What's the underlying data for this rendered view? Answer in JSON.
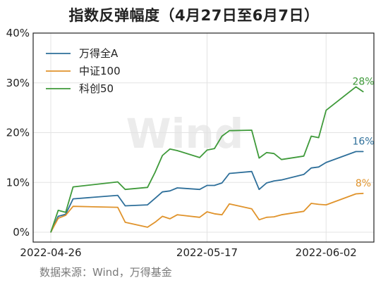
{
  "title": "指数反弹幅度（4月27日至6月7日）",
  "source": "数据来源：Wind，万得基金",
  "watermark": "Wind",
  "chart_data": {
    "type": "line",
    "title": "指数反弹幅度（4月27日至6月7日）",
    "xlabel": "",
    "ylabel": "",
    "xlim": [
      "2022-04-26",
      "2022-06-07"
    ],
    "ylim": [
      0,
      40
    ],
    "yticks": [
      0,
      10,
      20,
      30,
      40
    ],
    "ytick_labels": [
      "0%",
      "10%",
      "20%",
      "30%",
      "40%"
    ],
    "xticks": [
      "2022-04-26",
      "2022-05-17",
      "2022-06-02"
    ],
    "grid": true,
    "legend_position": "top-left",
    "series": [
      {
        "name": "万得全A",
        "color": "#2e6f9a",
        "end_label": "16%",
        "points": [
          [
            "2022-04-26",
            0.0
          ],
          [
            "2022-04-27",
            3.2
          ],
          [
            "2022-04-28",
            3.6
          ],
          [
            "2022-04-29",
            6.7
          ],
          [
            "2022-05-05",
            7.4
          ],
          [
            "2022-05-06",
            5.3
          ],
          [
            "2022-05-09",
            5.5
          ],
          [
            "2022-05-10",
            6.8
          ],
          [
            "2022-05-11",
            8.1
          ],
          [
            "2022-05-12",
            8.3
          ],
          [
            "2022-05-13",
            8.9
          ],
          [
            "2022-05-16",
            8.6
          ],
          [
            "2022-05-17",
            9.4
          ],
          [
            "2022-05-18",
            9.4
          ],
          [
            "2022-05-19",
            9.9
          ],
          [
            "2022-05-20",
            11.8
          ],
          [
            "2022-05-23",
            12.2
          ],
          [
            "2022-05-24",
            8.6
          ],
          [
            "2022-05-25",
            9.9
          ],
          [
            "2022-05-26",
            10.3
          ],
          [
            "2022-05-27",
            10.5
          ],
          [
            "2022-05-30",
            11.6
          ],
          [
            "2022-05-31",
            12.9
          ],
          [
            "2022-06-01",
            13.1
          ],
          [
            "2022-06-02",
            14.0
          ],
          [
            "2022-06-06",
            16.2
          ],
          [
            "2022-06-07",
            16.2
          ]
        ]
      },
      {
        "name": "中证100",
        "color": "#e0932b",
        "end_label": "8%",
        "points": [
          [
            "2022-04-26",
            0.0
          ],
          [
            "2022-04-27",
            2.8
          ],
          [
            "2022-04-28",
            3.4
          ],
          [
            "2022-04-29",
            5.2
          ],
          [
            "2022-05-05",
            5.0
          ],
          [
            "2022-05-06",
            2.0
          ],
          [
            "2022-05-09",
            1.0
          ],
          [
            "2022-05-10",
            2.0
          ],
          [
            "2022-05-11",
            3.2
          ],
          [
            "2022-05-12",
            2.7
          ],
          [
            "2022-05-13",
            3.5
          ],
          [
            "2022-05-16",
            3.0
          ],
          [
            "2022-05-17",
            4.1
          ],
          [
            "2022-05-18",
            3.7
          ],
          [
            "2022-05-19",
            3.5
          ],
          [
            "2022-05-20",
            5.7
          ],
          [
            "2022-05-23",
            4.7
          ],
          [
            "2022-05-24",
            2.5
          ],
          [
            "2022-05-25",
            3.0
          ],
          [
            "2022-05-26",
            3.1
          ],
          [
            "2022-05-27",
            3.5
          ],
          [
            "2022-05-30",
            4.2
          ],
          [
            "2022-05-31",
            5.8
          ],
          [
            "2022-06-01",
            5.6
          ],
          [
            "2022-06-02",
            5.5
          ],
          [
            "2022-06-06",
            7.7
          ],
          [
            "2022-06-07",
            7.8
          ]
        ]
      },
      {
        "name": "科创50",
        "color": "#3f9a3a",
        "end_label": "28%",
        "points": [
          [
            "2022-04-26",
            0.0
          ],
          [
            "2022-04-27",
            4.4
          ],
          [
            "2022-04-28",
            4.0
          ],
          [
            "2022-04-29",
            9.1
          ],
          [
            "2022-05-05",
            10.1
          ],
          [
            "2022-05-06",
            8.6
          ],
          [
            "2022-05-09",
            9.0
          ],
          [
            "2022-05-10",
            12.0
          ],
          [
            "2022-05-11",
            15.4
          ],
          [
            "2022-05-12",
            16.7
          ],
          [
            "2022-05-13",
            16.4
          ],
          [
            "2022-05-16",
            15.0
          ],
          [
            "2022-05-17",
            16.5
          ],
          [
            "2022-05-18",
            16.8
          ],
          [
            "2022-05-19",
            19.3
          ],
          [
            "2022-05-20",
            20.4
          ],
          [
            "2022-05-23",
            20.5
          ],
          [
            "2022-05-24",
            14.9
          ],
          [
            "2022-05-25",
            16.0
          ],
          [
            "2022-05-26",
            15.8
          ],
          [
            "2022-05-27",
            14.6
          ],
          [
            "2022-05-30",
            15.3
          ],
          [
            "2022-05-31",
            19.3
          ],
          [
            "2022-06-01",
            19.0
          ],
          [
            "2022-06-02",
            24.5
          ],
          [
            "2022-06-06",
            29.2
          ],
          [
            "2022-06-07",
            28.2
          ]
        ]
      }
    ]
  }
}
